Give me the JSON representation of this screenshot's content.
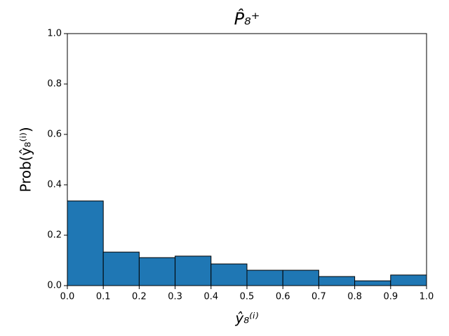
{
  "chart_data": {
    "type": "histogram",
    "title": "P̂₈⁺",
    "xlabel": "ŷ₈⁽ⁱ⁾",
    "ylabel": "Prob(ŷ₈⁽ⁱ⁾)",
    "bins": [
      0,
      0.1,
      0.2,
      0.3,
      0.4,
      0.5,
      0.6,
      0.7,
      0.8,
      0.9,
      1
    ],
    "values": [
      0.336,
      0.133,
      0.111,
      0.117,
      0.086,
      0.061,
      0.061,
      0.036,
      0.019,
      0.042
    ],
    "color": "#1f77b4",
    "edgecolor": "#000000",
    "xlim": [
      0,
      1
    ],
    "ylim": [
      0,
      1
    ],
    "xticks": [
      {
        "value": 0,
        "label": "0.0"
      },
      0.1,
      0.2,
      0.3,
      0.4,
      0.5,
      0.6,
      0.7,
      0.8,
      0.9,
      {
        "value": 1,
        "label": "1.0"
      }
    ],
    "yticks": [
      {
        "value": 0,
        "label": "0.0"
      },
      0.2,
      0.4,
      0.6,
      0.8,
      {
        "value": 1,
        "label": "1.0"
      }
    ],
    "grid": false
  }
}
